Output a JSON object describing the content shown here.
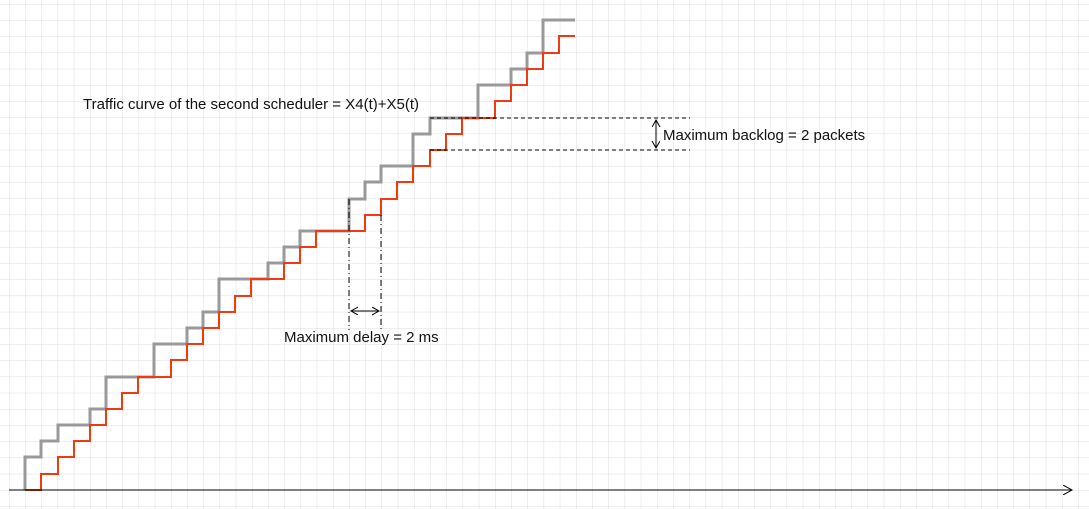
{
  "diagram": {
    "traffic_curve_label": "Traffic curve of the second scheduler = X4(t)+X5(t)",
    "backlog_label": "Maximum backlog = 2 packets",
    "delay_label": "Maximum delay = 2 ms"
  },
  "colors": {
    "grid": "#dcdcdc",
    "gray_curve": "#999999",
    "red_curve": "#ee3b14",
    "axis": "#000000"
  }
}
